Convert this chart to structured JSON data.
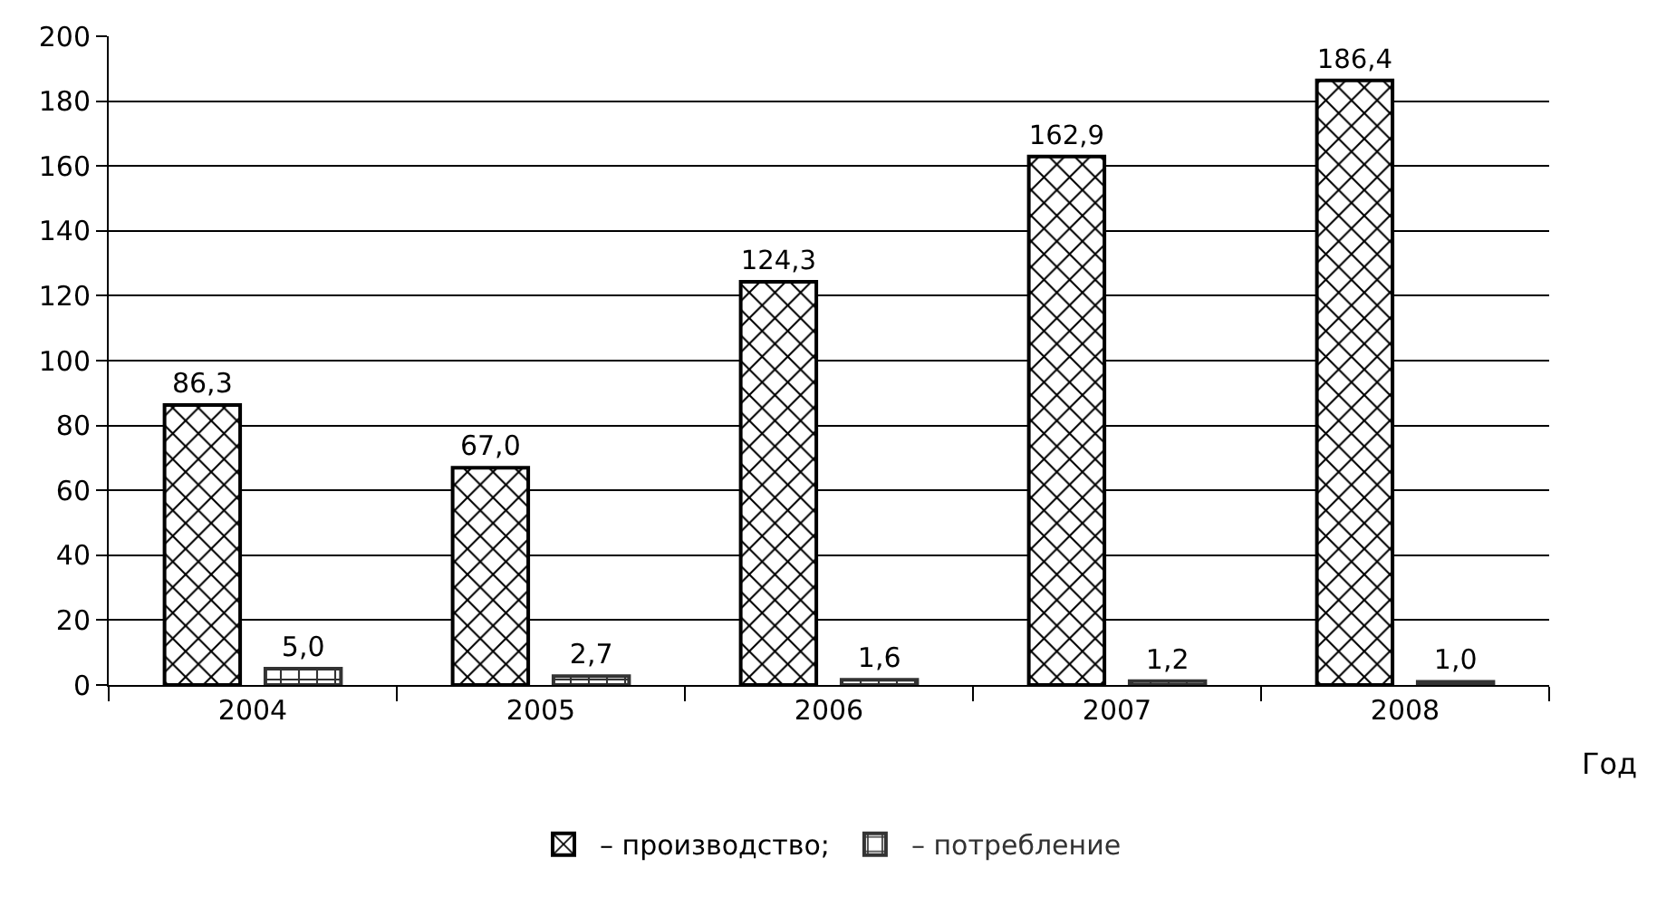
{
  "chart_data": {
    "type": "bar",
    "xlabel": "Год",
    "categories": [
      "2004",
      "2005",
      "2006",
      "2007",
      "2008"
    ],
    "series": [
      {
        "name": "– производство;",
        "color": "#000000",
        "values": [
          86.3,
          67.0,
          124.3,
          162.9,
          186.4
        ],
        "value_labels": [
          "86,3",
          "67,0",
          "124,3",
          "162,9",
          "186,4"
        ]
      },
      {
        "name": "– потребление",
        "color": "#333333",
        "values": [
          5.0,
          2.7,
          1.6,
          1.2,
          1.0
        ],
        "value_labels": [
          "5,0",
          "2,7",
          "1,6",
          "1,2",
          "1,0"
        ]
      }
    ],
    "ylim": [
      0,
      200
    ],
    "yticks": [
      0,
      20,
      40,
      60,
      80,
      100,
      120,
      140,
      160,
      180,
      200
    ],
    "grid": "y",
    "legend": "bottom"
  }
}
